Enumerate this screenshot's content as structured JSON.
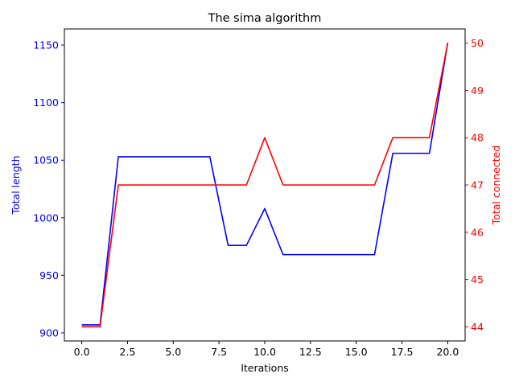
{
  "chart_data": {
    "type": "line",
    "title": "The sima algorithm",
    "xlabel": "Iterations",
    "x": [
      0,
      1,
      2,
      3,
      4,
      5,
      6,
      7,
      8,
      9,
      10,
      11,
      12,
      13,
      14,
      15,
      16,
      17,
      18,
      19,
      20
    ],
    "xlim": [
      -0.95,
      20.95
    ],
    "xticks": [
      0.0,
      2.5,
      5.0,
      7.5,
      10.0,
      12.5,
      15.0,
      17.5,
      20.0
    ],
    "xtick_labels": [
      "0.0",
      "2.5",
      "5.0",
      "7.5",
      "10.0",
      "12.5",
      "15.0",
      "17.5",
      "20.0"
    ],
    "grid": false,
    "left_axis": {
      "label": "Total length",
      "color": "#0000ff",
      "ylim": [
        893,
        1164
      ],
      "ticks": [
        900,
        950,
        1000,
        1050,
        1100,
        1150
      ],
      "tick_labels": [
        "900",
        "950",
        "1000",
        "1050",
        "1100",
        "1150"
      ]
    },
    "right_axis": {
      "label": "Total connected",
      "color": "#ff0000",
      "ylim": [
        43.7,
        50.3
      ],
      "ticks": [
        44,
        45,
        46,
        47,
        48,
        49,
        50
      ],
      "tick_labels": [
        "44",
        "45",
        "46",
        "47",
        "48",
        "49",
        "50"
      ]
    },
    "series": [
      {
        "axis": "left",
        "color": "#0000ff",
        "values": [
          907,
          907,
          1053,
          1053,
          1053,
          1053,
          1053,
          1053,
          976,
          976,
          1008,
          968,
          968,
          968,
          968,
          968,
          968,
          1056,
          1056,
          1056,
          1152
        ]
      },
      {
        "axis": "right",
        "color": "#ff0000",
        "values": [
          44,
          44,
          47,
          47,
          47,
          47,
          47,
          47,
          47,
          47,
          48,
          47,
          47,
          47,
          47,
          47,
          47,
          48,
          48,
          48,
          50
        ]
      }
    ]
  }
}
